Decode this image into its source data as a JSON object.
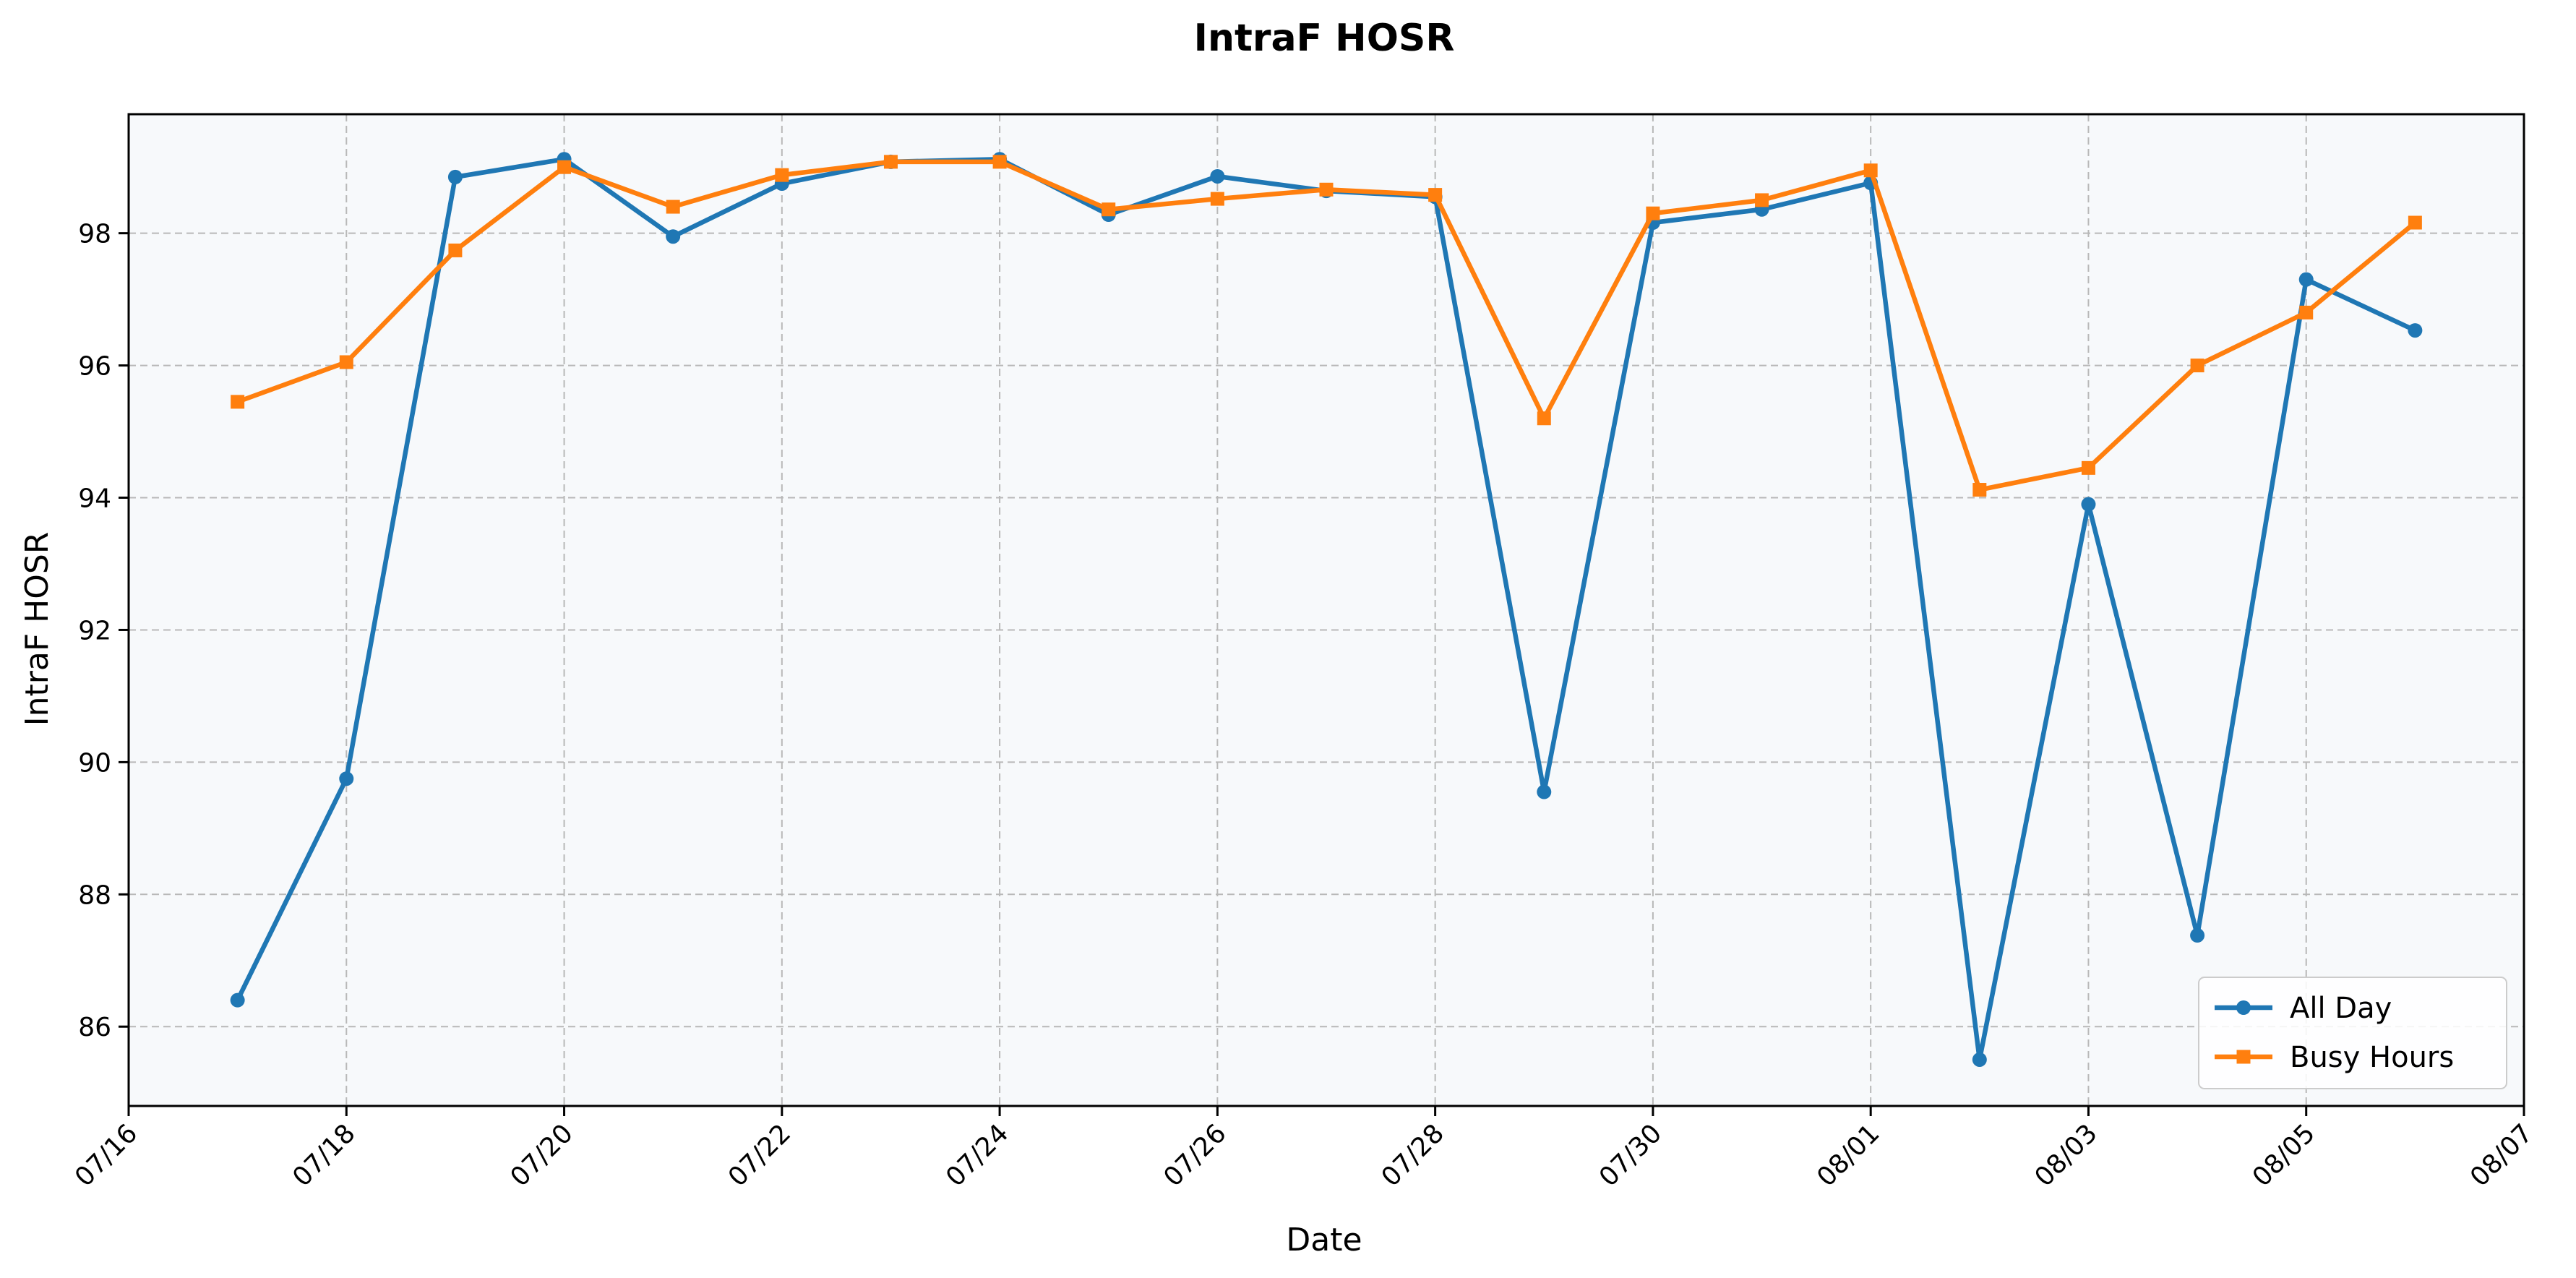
{
  "chart_data": {
    "type": "line",
    "title": "IntraF HOSR",
    "xlabel": "Date",
    "ylabel": "IntraF HOSR",
    "x": [
      "07/17",
      "07/18",
      "07/19",
      "07/20",
      "07/21",
      "07/22",
      "07/23",
      "07/24",
      "07/25",
      "07/26",
      "07/27",
      "07/28",
      "07/29",
      "07/30",
      "07/31",
      "08/01",
      "08/02",
      "08/03",
      "08/04",
      "08/05",
      "08/06"
    ],
    "xlim": [
      "07/16",
      "08/07"
    ],
    "x_ticks": [
      "07/16",
      "07/18",
      "07/20",
      "07/22",
      "07/24",
      "07/26",
      "07/28",
      "07/30",
      "08/01",
      "08/03",
      "08/05",
      "08/07"
    ],
    "ylim": [
      84.8,
      99.8
    ],
    "y_ticks": [
      86,
      88,
      90,
      92,
      94,
      96,
      98
    ],
    "grid": true,
    "legend_position": "lower-right",
    "plot_background": "#f7f9fb",
    "series": [
      {
        "name": "All Day",
        "color": "#1f77b4",
        "marker": "circle",
        "values": [
          86.4,
          89.75,
          98.85,
          99.12,
          97.95,
          98.75,
          99.08,
          99.12,
          98.28,
          98.86,
          98.64,
          98.55,
          89.55,
          98.16,
          98.36,
          98.76,
          85.5,
          93.9,
          87.38,
          97.3,
          96.53
        ]
      },
      {
        "name": "Busy Hours",
        "color": "#ff7f0e",
        "marker": "square",
        "values": [
          95.45,
          96.05,
          97.74,
          99.0,
          98.4,
          98.88,
          99.08,
          99.08,
          98.36,
          98.52,
          98.66,
          98.58,
          95.2,
          98.3,
          98.5,
          98.95,
          94.12,
          94.45,
          96.0,
          96.8,
          98.16
        ]
      }
    ]
  }
}
